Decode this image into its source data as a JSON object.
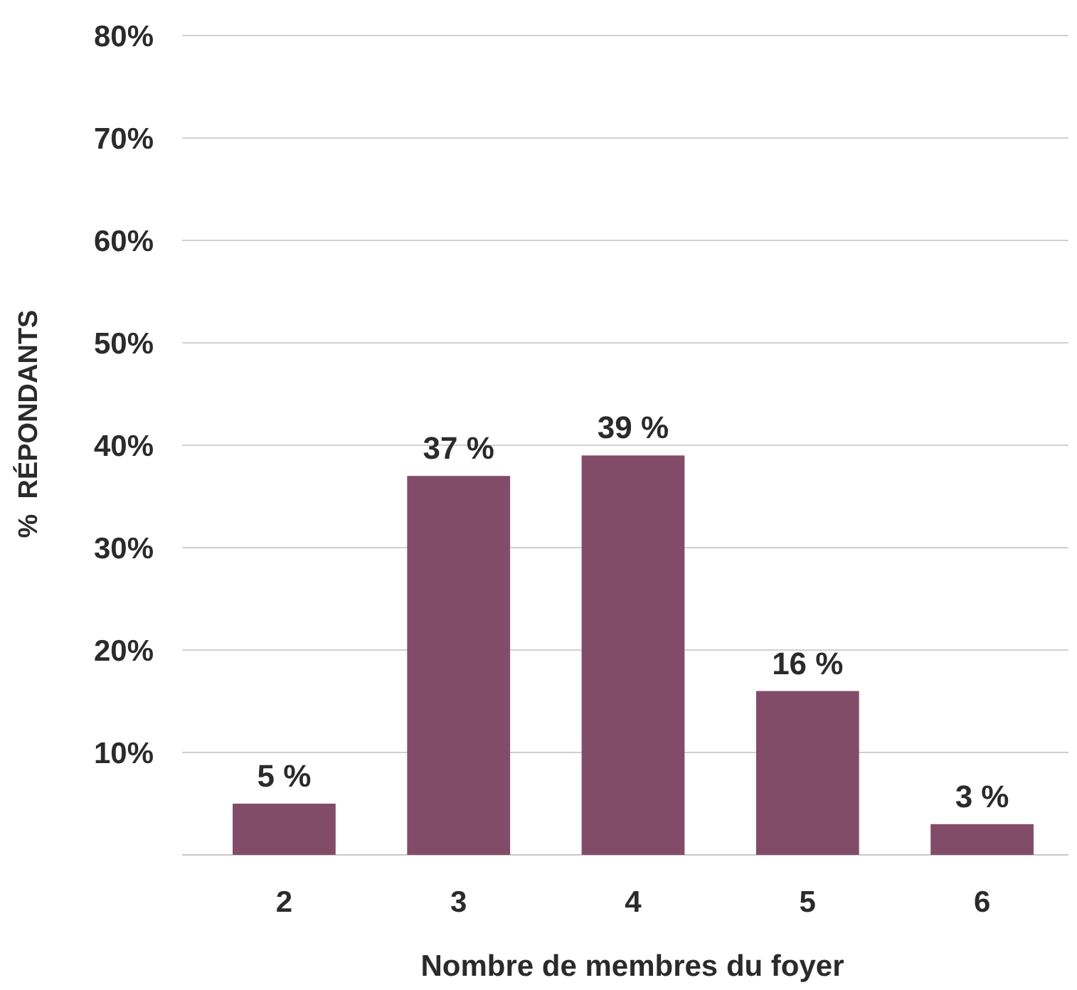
{
  "chart_data": {
    "type": "bar",
    "xlabel": "Nombre de membres du foyer",
    "ylabel": "%  RÉPONDANTS",
    "categories": [
      "2",
      "3",
      "4",
      "5",
      "6"
    ],
    "values": [
      5,
      37,
      39,
      16,
      3
    ],
    "value_labels": [
      "5 %",
      "37 %",
      "39 %",
      "16 %",
      "3 %"
    ],
    "color": "#824c69",
    "ylim": [
      0,
      80
    ],
    "yticks": [
      {
        "value": 10,
        "label": "10%"
      },
      {
        "value": 20,
        "label": "20%"
      },
      {
        "value": 30,
        "label": "30%"
      },
      {
        "value": 40,
        "label": "40%"
      },
      {
        "value": 50,
        "label": "50%"
      },
      {
        "value": 60,
        "label": "60%"
      },
      {
        "value": 70,
        "label": "70%"
      },
      {
        "value": 80,
        "label": "80%"
      }
    ],
    "grid": "y"
  }
}
